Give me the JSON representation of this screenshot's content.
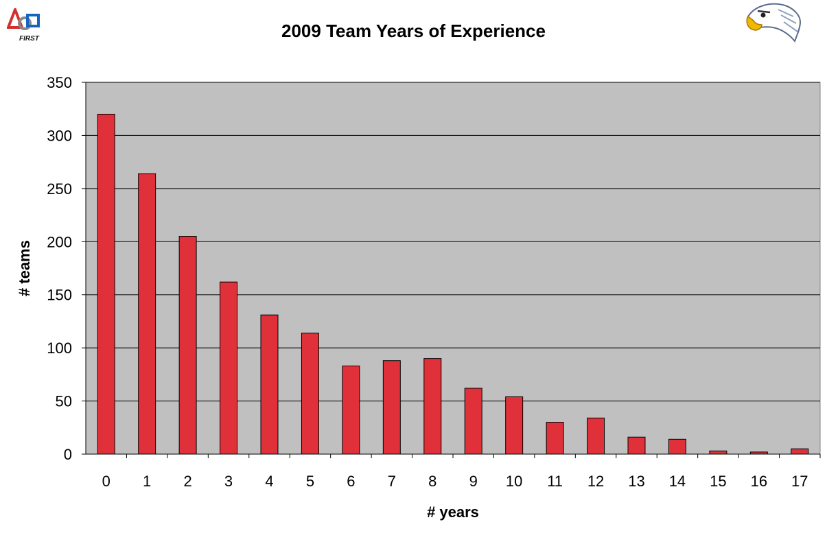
{
  "logos": {
    "first_text": "FIRST"
  },
  "chart_data": {
    "type": "bar",
    "title": "2009 Team Years of Experience",
    "xlabel": "# years",
    "ylabel": "# teams",
    "categories": [
      "0",
      "1",
      "2",
      "3",
      "4",
      "5",
      "6",
      "7",
      "8",
      "9",
      "10",
      "11",
      "12",
      "13",
      "14",
      "15",
      "16",
      "17"
    ],
    "values": [
      320,
      264,
      205,
      162,
      131,
      114,
      83,
      88,
      90,
      62,
      54,
      30,
      34,
      16,
      14,
      3,
      2,
      5
    ],
    "ylim": [
      0,
      350
    ],
    "yticks": [
      0,
      50,
      100,
      150,
      200,
      250,
      300,
      350
    ],
    "grid": true,
    "bar_color": "#E0313A",
    "plot_background": "#C0C0C0"
  }
}
